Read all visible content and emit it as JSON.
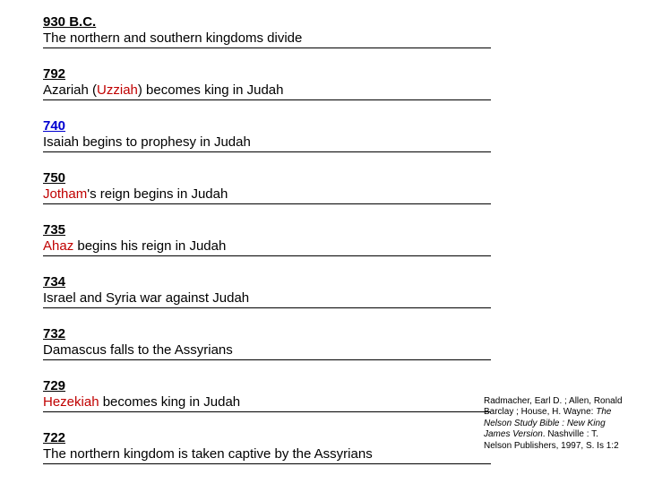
{
  "timeline": [
    {
      "year": "930 B.C.",
      "yearLink": false,
      "parts": [
        {
          "text": "The northern and southern kingdoms divide",
          "red": false
        }
      ]
    },
    {
      "year": "792",
      "yearLink": false,
      "parts": [
        {
          "text": "Azariah (",
          "red": false
        },
        {
          "text": "Uzziah",
          "red": true
        },
        {
          "text": ") becomes king in Judah",
          "red": false
        }
      ]
    },
    {
      "year": "740",
      "yearLink": true,
      "parts": [
        {
          "text": "Isaiah begins to prophesy in Judah",
          "red": false
        }
      ]
    },
    {
      "year": "750",
      "yearLink": false,
      "parts": [
        {
          "text": "Jotham",
          "red": true
        },
        {
          "text": "'s reign begins in Judah",
          "red": false
        }
      ]
    },
    {
      "year": "735",
      "yearLink": false,
      "parts": [
        {
          "text": "Ahaz",
          "red": true
        },
        {
          "text": " begins his reign in Judah",
          "red": false
        }
      ]
    },
    {
      "year": "734",
      "yearLink": false,
      "parts": [
        {
          "text": "Israel and Syria war against Judah",
          "red": false
        }
      ]
    },
    {
      "year": "732",
      "yearLink": false,
      "parts": [
        {
          "text": "Damascus falls to the Assyrians",
          "red": false
        }
      ]
    },
    {
      "year": "729",
      "yearLink": false,
      "parts": [
        {
          "text": "Hezekiah",
          "red": true
        },
        {
          "text": " becomes king in Judah",
          "red": false
        }
      ]
    },
    {
      "year": "722",
      "yearLink": false,
      "parts": [
        {
          "text": "The northern kingdom is taken captive by the Assyrians",
          "red": false
        }
      ]
    }
  ],
  "citation": {
    "authors": "Radmacher, Earl D. ; Allen, Ronald Barclay ; House, H. Wayne: ",
    "title": "The Nelson Study Bible : New King James Version",
    "pub": ". Nashville : T. Nelson Publishers, 1997, S. Is 1:2"
  },
  "styling": {
    "pageWidth": 720,
    "pageHeight": 540,
    "bgColor": "#ffffff",
    "textColor": "#000000",
    "redColor": "#c00000",
    "linkColor": "#0000d0",
    "fontFamily": "Arial",
    "entryFontSize": 15,
    "citationFontSize": 10,
    "contentLeft": 48,
    "contentTop": 16,
    "contentWidth": 500,
    "entryGap": 20,
    "underlineColor": "#000000"
  }
}
